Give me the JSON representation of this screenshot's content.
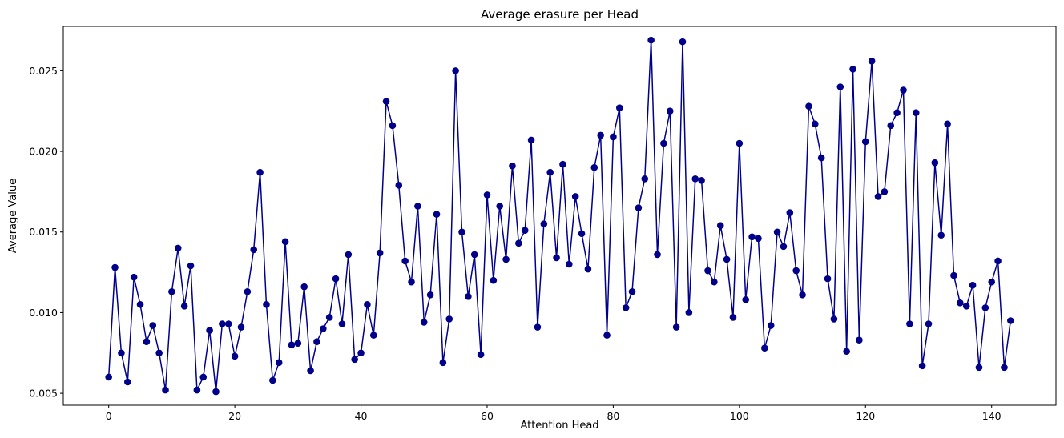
{
  "chart_data": {
    "type": "line",
    "title": "Average erasure per Head",
    "xlabel": "Attention Head",
    "ylabel": "Average Value",
    "xlim": [
      -7.2,
      150.2
    ],
    "ylim": [
      0.00426,
      0.02775
    ],
    "xticks": [
      0,
      20,
      40,
      60,
      80,
      100,
      120,
      140
    ],
    "xtick_labels": [
      "0",
      "20",
      "40",
      "60",
      "80",
      "100",
      "120",
      "140"
    ],
    "yticks": [
      0.005,
      0.01,
      0.015,
      0.02,
      0.025
    ],
    "ytick_labels": [
      "0.005",
      "0.010",
      "0.015",
      "0.020",
      "0.025"
    ],
    "grid": false,
    "legend": "none",
    "series": [
      {
        "color": "#00008b",
        "marker": "circle",
        "x": [
          0,
          1,
          2,
          3,
          4,
          5,
          6,
          7,
          8,
          9,
          10,
          11,
          12,
          13,
          14,
          15,
          16,
          17,
          18,
          19,
          20,
          21,
          22,
          23,
          24,
          25,
          26,
          27,
          28,
          29,
          30,
          31,
          32,
          33,
          34,
          35,
          36,
          37,
          38,
          39,
          40,
          41,
          42,
          43,
          44,
          45,
          46,
          47,
          48,
          49,
          50,
          51,
          52,
          53,
          54,
          55,
          56,
          57,
          58,
          59,
          60,
          61,
          62,
          63,
          64,
          65,
          66,
          67,
          68,
          69,
          70,
          71,
          72,
          73,
          74,
          75,
          76,
          77,
          78,
          79,
          80,
          81,
          82,
          83,
          84,
          85,
          86,
          87,
          88,
          89,
          90,
          91,
          92,
          93,
          94,
          95,
          96,
          97,
          98,
          99,
          100,
          101,
          102,
          103,
          104,
          105,
          106,
          107,
          108,
          109,
          110,
          111,
          112,
          113,
          114,
          115,
          116,
          117,
          118,
          119,
          120,
          121,
          122,
          123,
          124,
          125,
          126,
          127,
          128,
          129,
          130,
          131,
          132,
          133,
          134,
          135,
          136,
          137,
          138,
          139,
          140,
          141,
          142,
          143
        ],
        "values": [
          0.006,
          0.0128,
          0.0075,
          0.0057,
          0.0122,
          0.0105,
          0.0082,
          0.0092,
          0.0075,
          0.0052,
          0.0113,
          0.014,
          0.0104,
          0.0129,
          0.0052,
          0.006,
          0.0089,
          0.0051,
          0.0093,
          0.0093,
          0.0073,
          0.0091,
          0.0113,
          0.0139,
          0.0187,
          0.0105,
          0.0058,
          0.0069,
          0.0144,
          0.008,
          0.0081,
          0.0116,
          0.0064,
          0.0082,
          0.009,
          0.0097,
          0.0121,
          0.0093,
          0.0136,
          0.0071,
          0.0075,
          0.0105,
          0.0086,
          0.0137,
          0.0231,
          0.0216,
          0.0179,
          0.0132,
          0.0119,
          0.0166,
          0.0094,
          0.0111,
          0.0161,
          0.0069,
          0.0096,
          0.025,
          0.015,
          0.011,
          0.0136,
          0.0074,
          0.0173,
          0.012,
          0.0166,
          0.0133,
          0.0191,
          0.0143,
          0.0151,
          0.0207,
          0.0091,
          0.0155,
          0.0187,
          0.0134,
          0.0192,
          0.013,
          0.0172,
          0.0149,
          0.0127,
          0.019,
          0.021,
          0.0086,
          0.0209,
          0.0227,
          0.0103,
          0.0113,
          0.0165,
          0.0183,
          0.0269,
          0.0136,
          0.0205,
          0.0225,
          0.0091,
          0.0268,
          0.01,
          0.0183,
          0.0182,
          0.0126,
          0.0119,
          0.0154,
          0.0133,
          0.0097,
          0.0205,
          0.0108,
          0.0147,
          0.0146,
          0.0078,
          0.0092,
          0.015,
          0.0141,
          0.0162,
          0.0126,
          0.0111,
          0.0228,
          0.0217,
          0.0196,
          0.0121,
          0.0096,
          0.024,
          0.0076,
          0.0251,
          0.0083,
          0.0206,
          0.0256,
          0.0172,
          0.0175,
          0.0216,
          0.0224,
          0.0238,
          0.0093,
          0.0224,
          0.0067,
          0.0093,
          0.0193,
          0.0148,
          0.0217,
          0.0123,
          0.0106,
          0.0104,
          0.0117,
          0.0066,
          0.0103,
          0.0119,
          0.0132,
          0.0066,
          0.0095
        ]
      }
    ]
  }
}
